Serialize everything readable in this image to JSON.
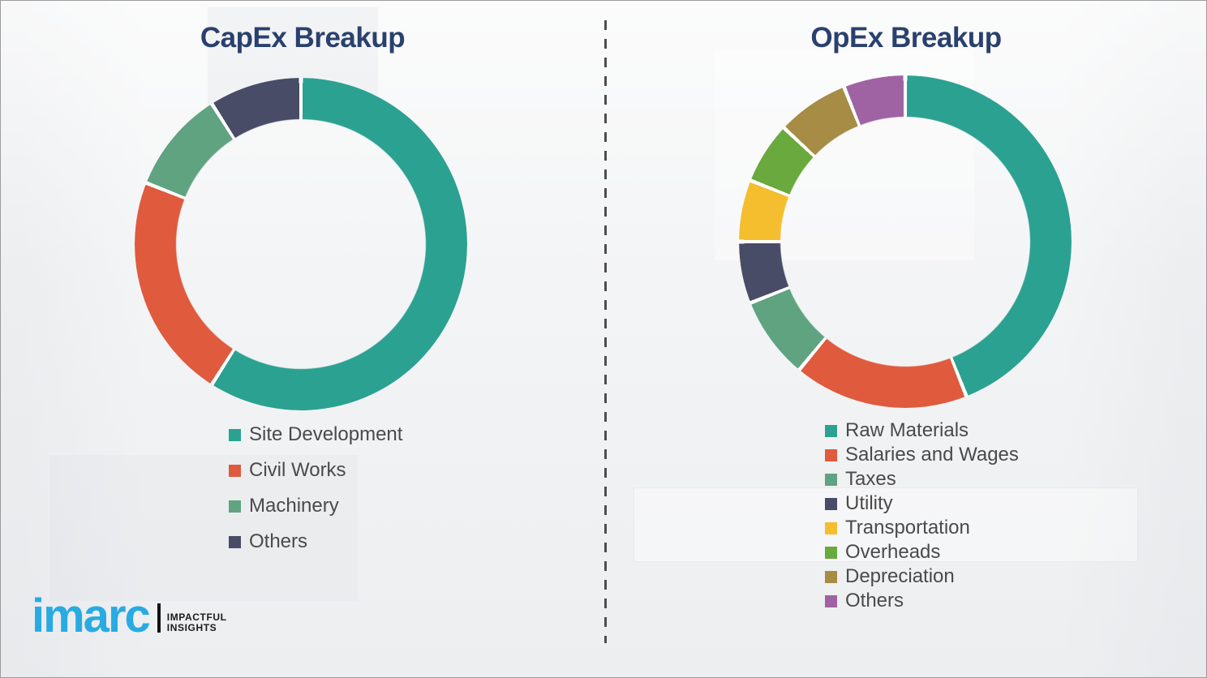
{
  "page": {
    "background_color": "#f4f5f6",
    "divider_color": "#4d4d4d",
    "title_color": "#2a406e",
    "legend_text_color": "#4a4a4a"
  },
  "logo": {
    "brand": "imarc",
    "brand_color": "#29abe2",
    "tagline_line1": "IMPACTFUL",
    "tagline_line2": "INSIGHTS"
  },
  "chart_data": [
    {
      "type": "donut",
      "title": "CapEx Breakup",
      "direction": "clockwise",
      "start_angle_deg": 0,
      "legend_position": "bottom",
      "segments": [
        {
          "label": "Site Development",
          "value": 59,
          "color": "#2ba191"
        },
        {
          "label": "Civil Works",
          "value": 22,
          "color": "#e05a3d"
        },
        {
          "label": "Machinery",
          "value": 10,
          "color": "#60a381"
        },
        {
          "label": "Others",
          "value": 9,
          "color": "#484c66"
        }
      ]
    },
    {
      "type": "donut",
      "title": "OpEx Breakup",
      "direction": "clockwise",
      "start_angle_deg": 0,
      "legend_position": "bottom",
      "segments": [
        {
          "label": "Raw Materials",
          "value": 44,
          "color": "#2ba191"
        },
        {
          "label": "Salaries and Wages",
          "value": 17,
          "color": "#e05a3d"
        },
        {
          "label": "Taxes",
          "value": 8,
          "color": "#60a381"
        },
        {
          "label": "Utility",
          "value": 6,
          "color": "#484c66"
        },
        {
          "label": "Transportation",
          "value": 6,
          "color": "#f4be2f"
        },
        {
          "label": "Overheads",
          "value": 6,
          "color": "#69a93d"
        },
        {
          "label": "Depreciation",
          "value": 7,
          "color": "#a68c44"
        },
        {
          "label": "Others",
          "value": 6,
          "color": "#9f63a3"
        }
      ]
    }
  ]
}
